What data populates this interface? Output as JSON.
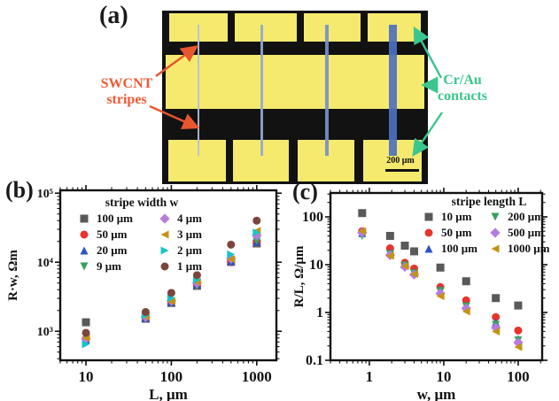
{
  "panel_a": {
    "label": "(a)",
    "swcnt_annotation": {
      "line1": "SWCNT",
      "line2": "stripes",
      "color": "#ef5a35"
    },
    "crau_annotation": {
      "line1": "Cr/Au",
      "line2": "contacts",
      "color": "#3bc68e"
    },
    "scalebar_text": "200 μm",
    "colors": {
      "gold_pad": "#f5ea6e",
      "contact_dark": "#121212",
      "stripe_blues": [
        "#b3c0da",
        "#93a9d4",
        "#7590cc",
        "#4c70c0"
      ]
    }
  },
  "chart_data": [
    {
      "type": "scatter",
      "panel_label": "(b)",
      "xlabel": "L, μm",
      "ylabel": "R·w, Ωm",
      "xscale": "log",
      "yscale": "log",
      "xlim": [
        5,
        1700
      ],
      "ylim": [
        380,
        110000
      ],
      "grid": false,
      "xticks": [
        {
          "v": 10,
          "t": "10"
        },
        {
          "v": 100,
          "t": "100"
        },
        {
          "v": 1000,
          "t": "1000"
        }
      ],
      "yticks": [
        {
          "v": 1000,
          "t": "10³"
        },
        {
          "v": 10000,
          "t": "10⁴"
        },
        {
          "v": 100000,
          "t": "10⁵"
        }
      ],
      "legend": {
        "title": "stripe width w",
        "position": "top-left"
      },
      "x": [
        10,
        50,
        100,
        200,
        500,
        1000
      ],
      "series": [
        {
          "name": "100 μm",
          "marker": "square",
          "color": "#595959",
          "values": [
            1350,
            1520,
            2570,
            4550,
            10100,
            18700
          ]
        },
        {
          "name": "50 μm",
          "marker": "circle",
          "color": "#e6352b",
          "values": [
            780,
            1540,
            2600,
            4600,
            10000,
            19100
          ]
        },
        {
          "name": "20 μm",
          "marker": "triangle-up",
          "color": "#2b54c9",
          "values": [
            760,
            1560,
            2640,
            4700,
            10300,
            19600
          ]
        },
        {
          "name": "9 μm",
          "marker": "triangle-down",
          "color": "#33a45c",
          "values": [
            730,
            1500,
            2560,
            4500,
            10500,
            20300
          ]
        },
        {
          "name": "4 μm",
          "marker": "diamond",
          "color": "#b77be0",
          "values": [
            775,
            1600,
            2780,
            5000,
            11300,
            24500
          ]
        },
        {
          "name": "3 μm",
          "marker": "triangle-left",
          "color": "#c39413",
          "values": [
            800,
            1640,
            2710,
            5200,
            11100,
            28500
          ]
        },
        {
          "name": "2 μm",
          "marker": "triangle-right",
          "color": "#19c3c9",
          "values": [
            650,
            1700,
            3050,
            5600,
            13000,
            27000
          ]
        },
        {
          "name": "1 μm",
          "marker": "circle",
          "color": "#7a453d",
          "values": [
            950,
            1900,
            3600,
            6500,
            18000,
            40000
          ]
        }
      ]
    },
    {
      "type": "scatter",
      "panel_label": "(c)",
      "xlabel": "w, μm",
      "ylabel": "R/L, Ω/μm",
      "xscale": "log",
      "yscale": "log",
      "xlim": [
        0.3,
        210
      ],
      "ylim": [
        0.1,
        316
      ],
      "grid": false,
      "xticks": [
        {
          "v": 1,
          "t": "1"
        },
        {
          "v": 10,
          "t": "10"
        },
        {
          "v": 100,
          "t": "100"
        }
      ],
      "yticks": [
        {
          "v": 0.1,
          "t": "0.1"
        },
        {
          "v": 1,
          "t": "1"
        },
        {
          "v": 10,
          "t": "10"
        },
        {
          "v": 100,
          "t": "100"
        }
      ],
      "legend": {
        "title": "stripe length L",
        "position": "top-right"
      },
      "x": [
        0.8,
        1.9,
        3,
        4,
        9,
        20,
        50,
        100
      ],
      "series": [
        {
          "name": "10 μm",
          "marker": "square",
          "color": "#595959",
          "values": [
            120,
            40,
            25,
            19,
            8.7,
            4.5,
            2.0,
            1.4
          ]
        },
        {
          "name": "50 μm",
          "marker": "circle",
          "color": "#e6352b",
          "values": [
            50,
            22,
            11,
            8.3,
            3.4,
            1.8,
            0.8,
            0.42
          ]
        },
        {
          "name": "100 μm",
          "marker": "triangle-up",
          "color": "#2b54c9",
          "values": [
            46,
            18,
            10,
            7.0,
            3.0,
            1.4,
            0.62,
            0.28
          ]
        },
        {
          "name": "200 μm",
          "marker": "triangle-down",
          "color": "#33a45c",
          "values": [
            40,
            16.5,
            9.6,
            6.6,
            2.8,
            1.33,
            0.55,
            0.26
          ]
        },
        {
          "name": "500 μm",
          "marker": "diamond",
          "color": "#b77be0",
          "values": [
            47,
            15.8,
            9.0,
            6.2,
            2.5,
            1.22,
            0.48,
            0.235
          ]
        },
        {
          "name": "1000 μm",
          "marker": "triangle-left",
          "color": "#c39413",
          "values": [
            50,
            15.3,
            9.3,
            6.4,
            2.2,
            1.05,
            0.4,
            0.19
          ]
        }
      ]
    }
  ]
}
